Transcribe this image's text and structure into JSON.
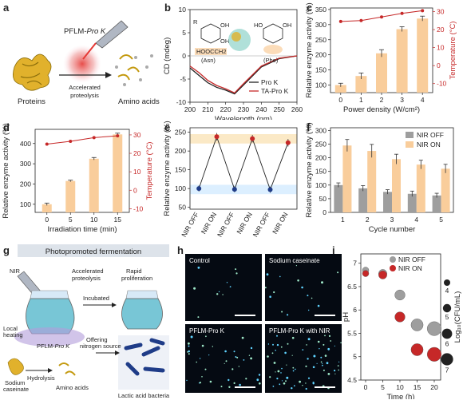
{
  "panels": {
    "a": "a",
    "b": "b",
    "c": "c",
    "d": "d",
    "e": "e",
    "f": "f",
    "g": "g",
    "h": "h",
    "i": "i"
  },
  "panel_a": {
    "reagent": "PFLM-",
    "reagent_it": "Pro K",
    "process": [
      "Accelerated",
      "proteolysis"
    ],
    "left": "Proteins",
    "right": "Amino acids"
  },
  "panel_g": {
    "title": "Photopromoted fermentation",
    "nir": "NIR",
    "accel": [
      "Accelerated",
      "proteolysis"
    ],
    "rapid": [
      "Rapid",
      "proliferation"
    ],
    "incubated": "Incubated",
    "local": [
      "Local",
      "heating"
    ],
    "pflm": "PFLM-",
    "pflm_it": "Pro K",
    "offering": [
      "Offering",
      "nitrogen source"
    ],
    "sodium": [
      "Sodium",
      "caseinate"
    ],
    "hydrolysis": "Hydrolysis",
    "amino": "Amino acids",
    "lab": "Lactic acid bacteria"
  },
  "panel_h": {
    "cells": [
      "Control",
      "Sodium caseinate",
      "PFLM-Pro K",
      "PFLM-Pro K with NIR"
    ]
  },
  "colors": {
    "bar": "#f9cd9b",
    "red": "#c62828",
    "gray": "#9e9e9e",
    "black": "#222222",
    "blue": "#1f3c88"
  },
  "chart_data": [
    {
      "id": "b",
      "type": "line",
      "xlabel": "Wavelength (nm)",
      "ylabel": "CD (mdeg)",
      "x": [
        200,
        205,
        210,
        215,
        220,
        225,
        230,
        240,
        250,
        260
      ],
      "series": [
        {
          "name": "Pro K",
          "values": [
            -2.6,
            -4.2,
            -5.8,
            -6.8,
            -7.4,
            -8.2,
            -6.3,
            -2.4,
            -0.6,
            0
          ]
        },
        {
          "name": "TA-Pro K",
          "values": [
            -2.2,
            -3.6,
            -5.3,
            -6.4,
            -7.1,
            -8.0,
            -6.0,
            -2.2,
            -0.5,
            0
          ]
        }
      ],
      "xlim": [
        200,
        260
      ],
      "ylim": [
        -10,
        10
      ],
      "xticks": [
        200,
        210,
        220,
        230,
        240,
        250,
        260
      ],
      "yticks": [
        -10,
        -5,
        0,
        5,
        10
      ],
      "inset": {
        "left": "(Asn)",
        "right": "(Phe)",
        "group": "HOOCCH",
        "group2": "2",
        "oh": "OH",
        "ho": "HO",
        "r": "R"
      }
    },
    {
      "id": "c",
      "type": "bar",
      "xlabel": "Power density (W/cm²)",
      "ylabel": "Relative enzyme activity (%)",
      "y2label": "Temperature (°C)",
      "categories": [
        "0",
        "1",
        "2",
        "3",
        "4"
      ],
      "values": [
        100,
        130,
        205,
        285,
        320
      ],
      "errors": [
        6,
        10,
        12,
        8,
        8
      ],
      "temperature": [
        24.5,
        25,
        27,
        29,
        30.5
      ],
      "yticks": [
        100,
        150,
        200,
        250,
        300,
        350
      ],
      "ylim": [
        75,
        355
      ],
      "y2ticks": [
        -10,
        0,
        10,
        20,
        30
      ],
      "y2lim": [
        -15,
        32
      ]
    },
    {
      "id": "d",
      "type": "bar",
      "xlabel": "Irradiation time (min)",
      "ylabel": "Relative enzyme activity (%)",
      "y2label": "Temperature (°C)",
      "categories": [
        "0",
        "5",
        "10",
        "15"
      ],
      "values": [
        100,
        215,
        325,
        445
      ],
      "errors": [
        6,
        4,
        6,
        6
      ],
      "temperature": [
        25,
        26.5,
        28.5,
        29.5
      ],
      "yticks": [
        100,
        200,
        300,
        400
      ],
      "ylim": [
        60,
        470
      ],
      "y2ticks": [
        -10,
        0,
        10,
        20,
        30
      ],
      "y2lim": [
        -12,
        33
      ]
    },
    {
      "id": "e",
      "type": "line",
      "ylabel": "Relative enzyme activity (%)",
      "categories": [
        "NIR OFF",
        "NIR ON",
        "NIR OFF",
        "NIR ON",
        "NIR OFF",
        "NIR ON"
      ],
      "values": [
        100,
        238,
        98,
        233,
        97,
        222
      ],
      "errors": [
        8,
        10,
        8,
        10,
        8,
        10
      ],
      "yticks": [
        50,
        100,
        150,
        200,
        250
      ],
      "ylim": [
        45,
        262
      ],
      "band_high": [
        220,
        245
      ],
      "band_low": [
        85,
        110
      ]
    },
    {
      "id": "f",
      "type": "bar",
      "xlabel": "Cycle number",
      "ylabel": "Relative enzyme activity (%)",
      "categories": [
        "1",
        "2",
        "3",
        "4",
        "5"
      ],
      "series": [
        {
          "name": "NIR OFF",
          "values": [
            100,
            88,
            75,
            68,
            62
          ],
          "errors": [
            8,
            10,
            8,
            10,
            8
          ]
        },
        {
          "name": "NIR ON",
          "values": [
            245,
            225,
            195,
            175,
            160
          ],
          "errors": [
            22,
            24,
            18,
            16,
            16
          ]
        }
      ],
      "yticks": [
        0,
        50,
        100,
        150,
        200,
        250,
        300
      ],
      "ylim": [
        0,
        310
      ],
      "legend": "top-right"
    },
    {
      "id": "i",
      "type": "scatter",
      "xlabel": "Time (h)",
      "ylabel": "pH",
      "y2label": "Log₁₀(CFU/mL)",
      "x": [
        0,
        5,
        10,
        15,
        20
      ],
      "series": [
        {
          "name": "NIR OFF",
          "values": [
            6.85,
            6.78,
            6.32,
            5.68,
            5.6
          ]
        },
        {
          "name": "NIR ON",
          "values": [
            6.78,
            6.75,
            5.85,
            5.15,
            5.05
          ]
        }
      ],
      "xticks": [
        0,
        5,
        10,
        15,
        20
      ],
      "yticks": [
        4.5,
        5.0,
        5.5,
        6.0,
        6.5,
        7.0
      ],
      "ylim": [
        4.5,
        7.2
      ],
      "y2ticks": [
        "4",
        "5",
        "6",
        "7"
      ],
      "legend": "top-right"
    }
  ]
}
